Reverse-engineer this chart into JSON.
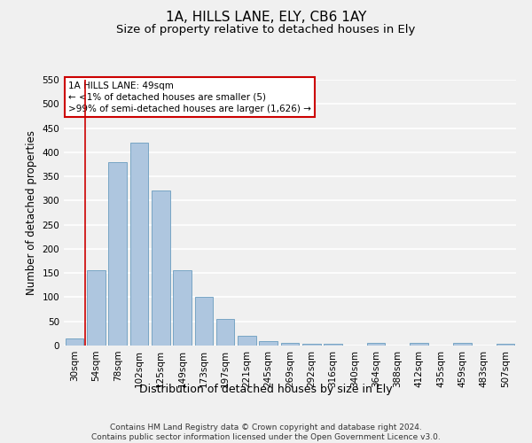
{
  "title": "1A, HILLS LANE, ELY, CB6 1AY",
  "subtitle": "Size of property relative to detached houses in Ely",
  "xlabel": "Distribution of detached houses by size in Ely",
  "ylabel": "Number of detached properties",
  "categories": [
    "30sqm",
    "54sqm",
    "78sqm",
    "102sqm",
    "125sqm",
    "149sqm",
    "173sqm",
    "197sqm",
    "221sqm",
    "245sqm",
    "269sqm",
    "292sqm",
    "316sqm",
    "340sqm",
    "364sqm",
    "388sqm",
    "412sqm",
    "435sqm",
    "459sqm",
    "483sqm",
    "507sqm"
  ],
  "values": [
    15,
    155,
    380,
    420,
    320,
    155,
    100,
    55,
    20,
    10,
    5,
    3,
    3,
    0,
    5,
    0,
    5,
    0,
    5,
    0,
    3
  ],
  "bar_color": "#aec6df",
  "bar_edge_color": "#6a9dbf",
  "ylim": [
    0,
    550
  ],
  "yticks": [
    0,
    50,
    100,
    150,
    200,
    250,
    300,
    350,
    400,
    450,
    500,
    550
  ],
  "annotation_text": "1A HILLS LANE: 49sqm\n← <1% of detached houses are smaller (5)\n>99% of semi-detached houses are larger (1,626) →",
  "annotation_box_color": "#ffffff",
  "annotation_box_edge_color": "#cc0000",
  "footer": "Contains HM Land Registry data © Crown copyright and database right 2024.\nContains public sector information licensed under the Open Government Licence v3.0.",
  "bg_color": "#f0f0f0",
  "grid_color": "#ffffff",
  "title_fontsize": 11,
  "subtitle_fontsize": 9.5,
  "axis_label_fontsize": 8.5,
  "tick_fontsize": 7.5,
  "footer_fontsize": 6.5,
  "annotation_fontsize": 7.5
}
